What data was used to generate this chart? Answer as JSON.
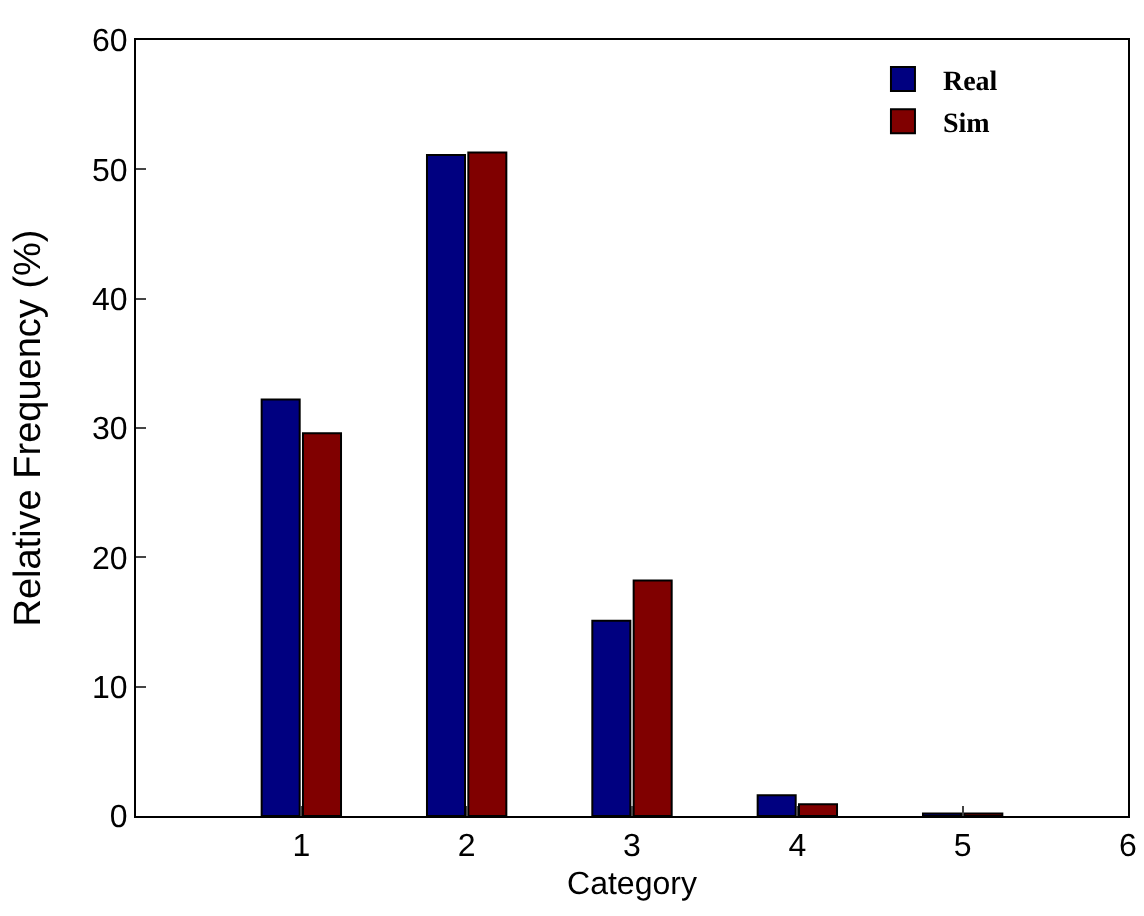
{
  "chart_data": {
    "type": "bar",
    "xlabel": "Category",
    "ylabel": "Relative Frequency (%)",
    "x": [
      1,
      2,
      3,
      4,
      5
    ],
    "series": [
      {
        "name": "Real",
        "color": "#000080",
        "values": [
          32.2,
          51.1,
          15.1,
          1.6,
          0.2
        ]
      },
      {
        "name": "Sim",
        "color": "#800000",
        "values": [
          29.6,
          51.3,
          18.2,
          0.9,
          0.2
        ]
      }
    ],
    "xlim": [
      0,
      6
    ],
    "xticks": [
      1,
      2,
      3,
      4,
      5,
      6
    ],
    "ylim": [
      0,
      60
    ],
    "yticks": [
      0,
      10,
      20,
      30,
      40,
      50,
      60
    ],
    "grid": false,
    "legend": "top right"
  }
}
